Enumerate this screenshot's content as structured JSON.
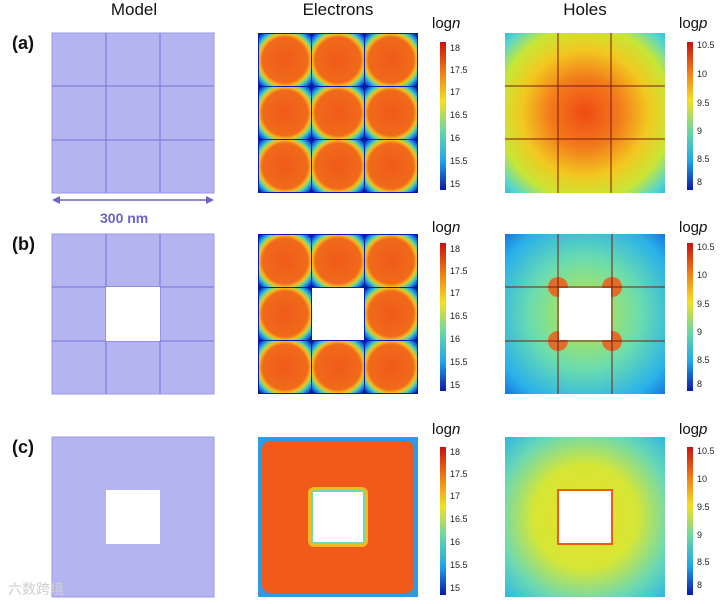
{
  "columns": {
    "model": "Model",
    "electrons": "Electrons",
    "holes": "Holes"
  },
  "rows": [
    {
      "label": "(a)"
    },
    {
      "label": "(b)"
    },
    {
      "label": "(c)"
    }
  ],
  "scale_label": "300 nm",
  "colorbar_electrons": {
    "label_prefix": "log",
    "label_var": "n",
    "ticks": [
      "18",
      "17.5",
      "17",
      "16.5",
      "16",
      "15.5",
      "15"
    ]
  },
  "colorbar_holes": {
    "label_prefix": "log",
    "label_var": "p",
    "ticks": [
      "10.5",
      "10",
      "9.5",
      "9",
      "8.5",
      "8"
    ]
  },
  "watermark": "六数跨境",
  "colors": {
    "model_fill": "#b4b4f0",
    "model_line": "#7474d8",
    "scale_color": "#6a63c4"
  }
}
